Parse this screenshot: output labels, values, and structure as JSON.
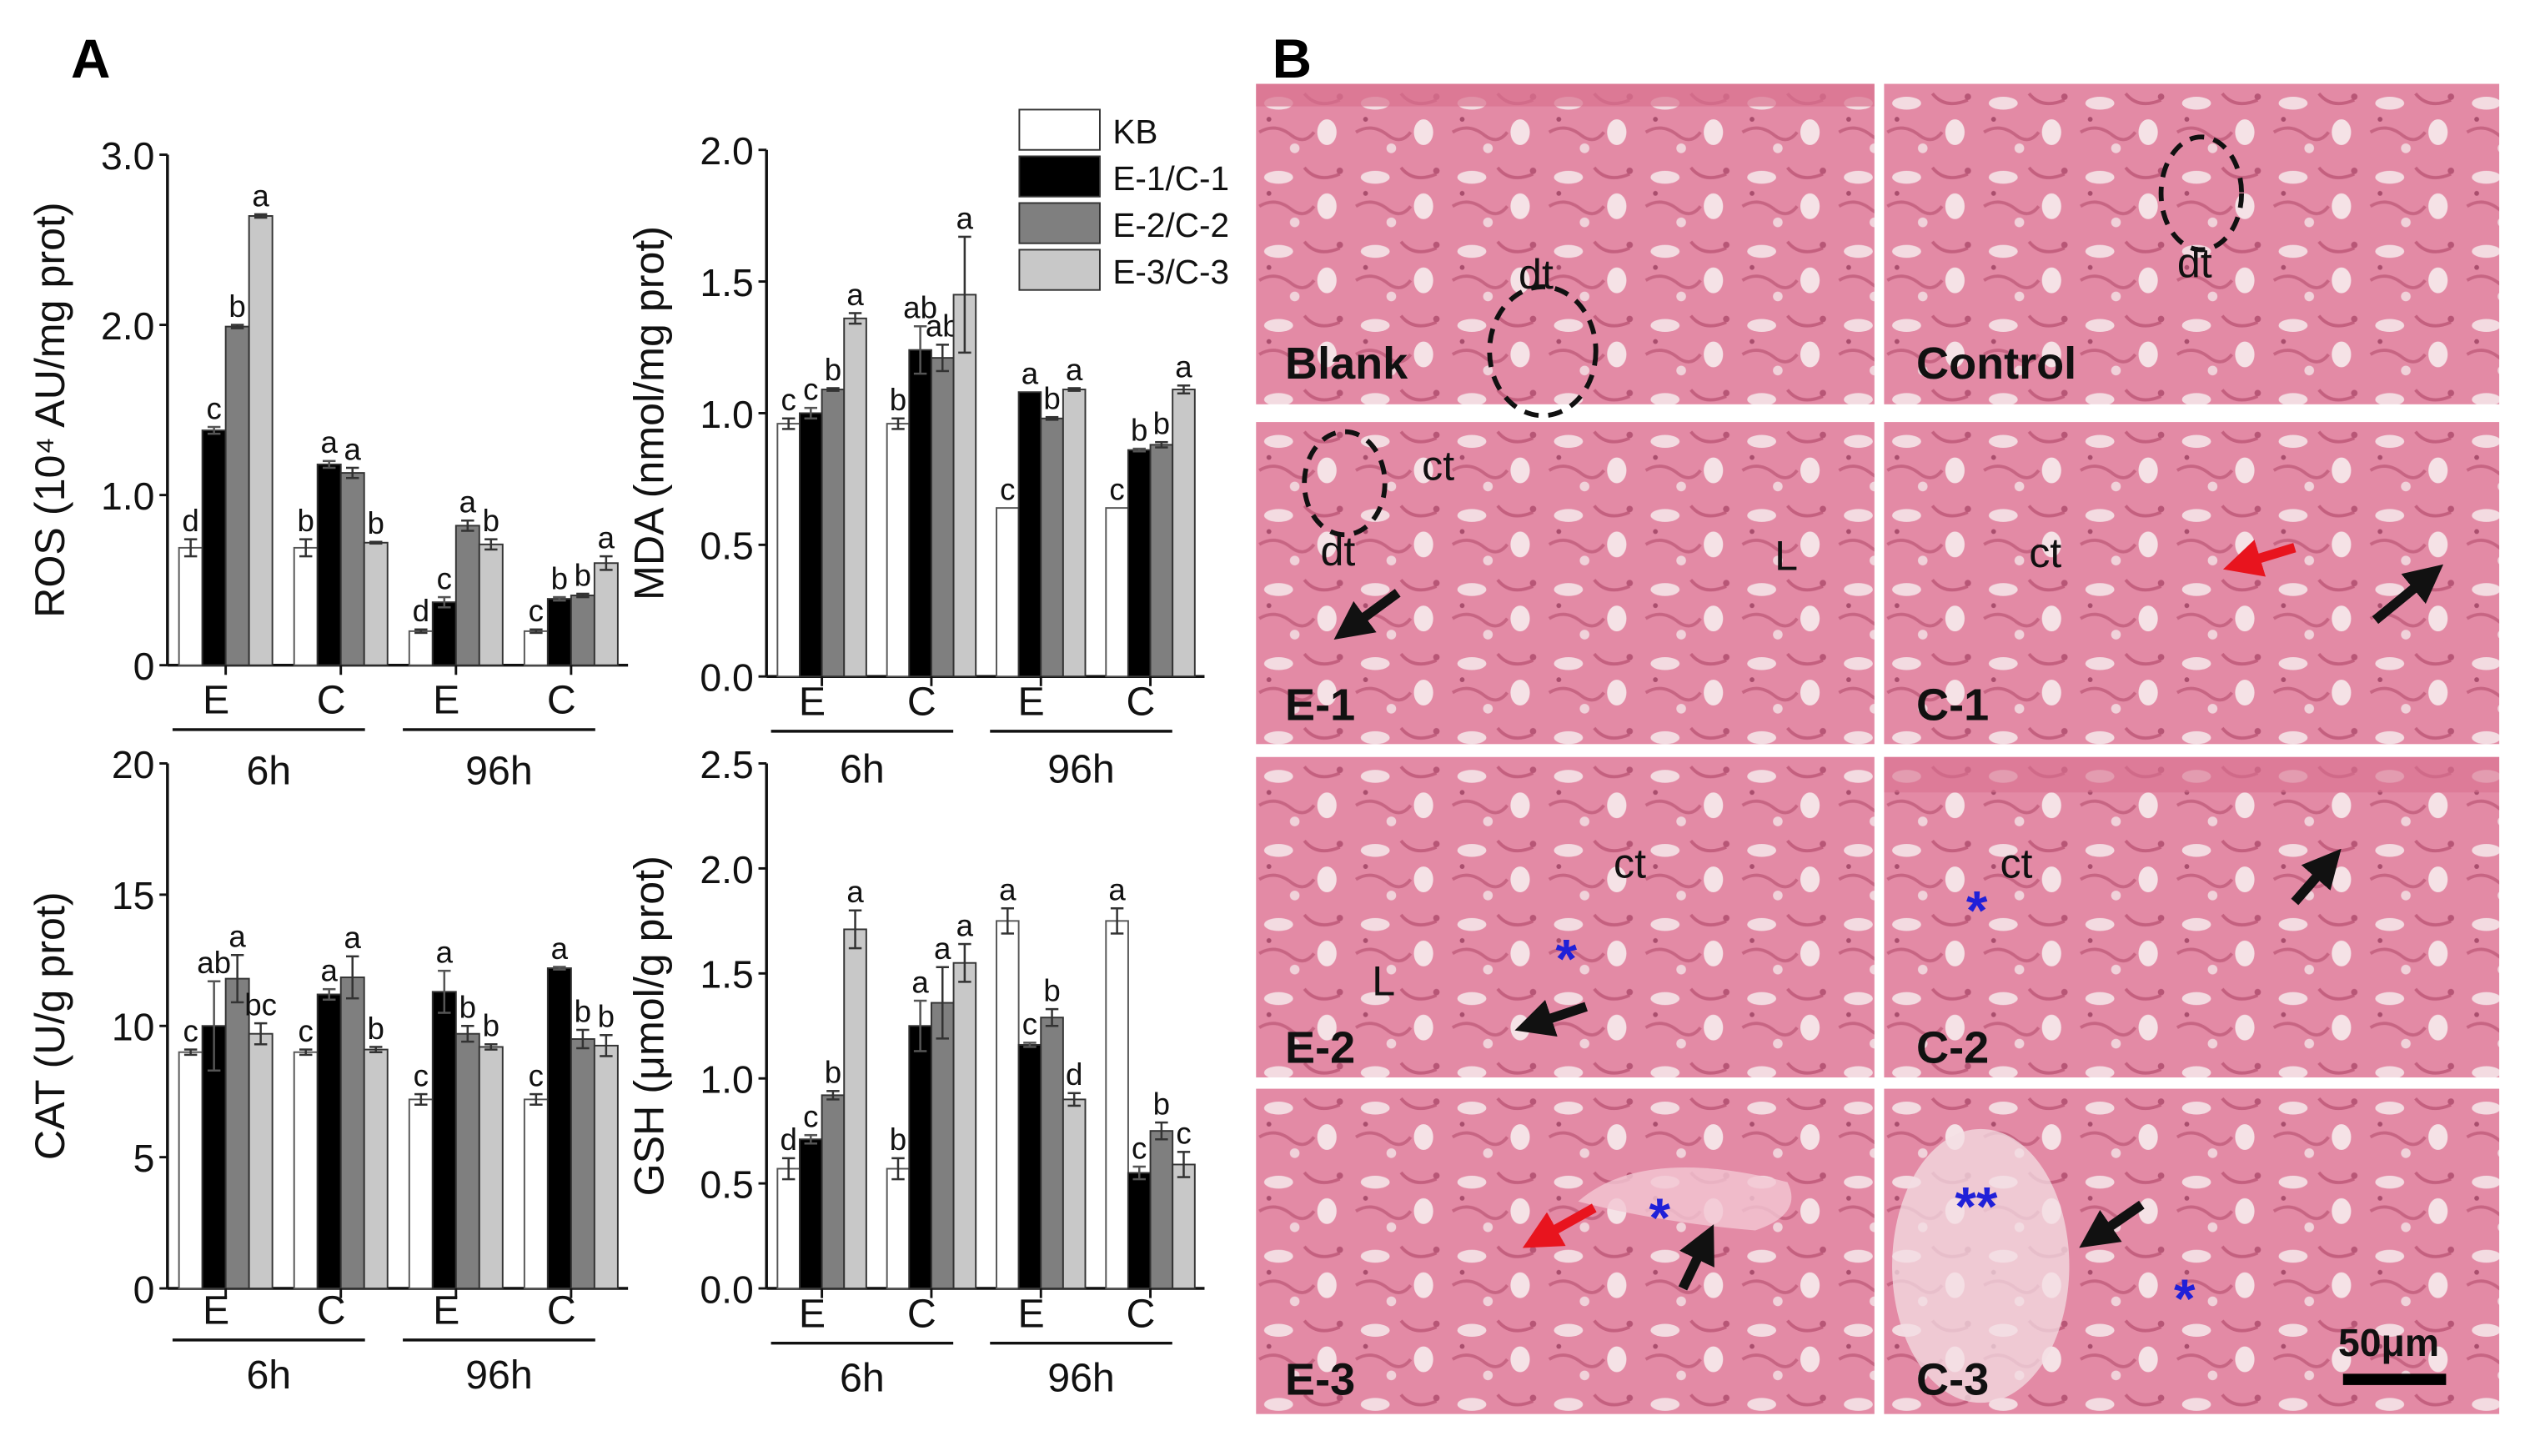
{
  "panel_labels": {
    "a": "A",
    "b": "B"
  },
  "legend": [
    {
      "label": "KB",
      "color": "#ffffff"
    },
    {
      "label": "E-1/C-1",
      "color": "#000000"
    },
    {
      "label": "E-2/C-2",
      "color": "#7f7f7f"
    },
    {
      "label": "E-3/C-3",
      "color": "#c8c8c8"
    }
  ],
  "chart_data": [
    {
      "type": "bar",
      "id": "ros",
      "ylabel": "ROS (10⁴ AU/mg prot)",
      "ylim": [
        0,
        3.0
      ],
      "yticks": [
        0,
        1.0,
        2.0,
        3.0
      ],
      "ytick_labels": [
        "0",
        "1.0",
        "2.0",
        "3.0"
      ],
      "categories": [
        "E",
        "C",
        "E",
        "C"
      ],
      "time_groups": [
        "6h",
        "96h"
      ],
      "series_names": [
        "KB",
        "E-1/C-1",
        "E-2/C-2",
        "E-3/C-3"
      ],
      "values": [
        [
          0.69,
          1.38,
          1.99,
          2.64
        ],
        [
          0.69,
          1.18,
          1.13,
          0.72
        ],
        [
          0.2,
          0.37,
          0.82,
          0.71
        ],
        [
          0.2,
          0.39,
          0.41,
          0.6
        ]
      ],
      "errors": [
        [
          0.05,
          0.02,
          0.01,
          0.01
        ],
        [
          0.05,
          0.02,
          0.03,
          0.005
        ],
        [
          0.01,
          0.03,
          0.03,
          0.03
        ],
        [
          0.01,
          0.01,
          0.01,
          0.04
        ]
      ],
      "letters": [
        [
          "d",
          "c",
          "b",
          "a"
        ],
        [
          "b",
          "a",
          "a",
          "b"
        ],
        [
          "d",
          "c",
          "a",
          "b"
        ],
        [
          "c",
          "b",
          "b",
          "a"
        ]
      ]
    },
    {
      "type": "bar",
      "id": "mda",
      "ylabel": "MDA (nmol/mg prot)",
      "ylim": [
        0,
        2.0
      ],
      "yticks": [
        0,
        0.5,
        1.0,
        1.5,
        2.0
      ],
      "ytick_labels": [
        "0.0",
        "0.5",
        "1.0",
        "1.5",
        "2.0"
      ],
      "categories": [
        "E",
        "C",
        "E",
        "C"
      ],
      "time_groups": [
        "6h",
        "96h"
      ],
      "series_names": [
        "KB",
        "E-1/C-1",
        "E-2/C-2",
        "E-3/C-3"
      ],
      "values": [
        [
          0.96,
          1.0,
          1.09,
          1.36
        ],
        [
          0.96,
          1.24,
          1.21,
          1.45
        ],
        [
          0.64,
          1.08,
          0.98,
          1.09
        ],
        [
          0.64,
          0.86,
          0.88,
          1.09
        ]
      ],
      "errors": [
        [
          0.02,
          0.02,
          0.005,
          0.02
        ],
        [
          0.02,
          0.09,
          0.05,
          0.22
        ],
        [
          0,
          0,
          0.005,
          0.005
        ],
        [
          0,
          0.005,
          0.01,
          0.015
        ]
      ],
      "letters": [
        [
          "c",
          "c",
          "b",
          "a"
        ],
        [
          "b",
          "ab",
          "ab",
          "a"
        ],
        [
          "c",
          "a",
          "b",
          "a"
        ],
        [
          "c",
          "b",
          "b",
          "a"
        ]
      ]
    },
    {
      "type": "bar",
      "id": "cat",
      "ylabel": "CAT (U/g prot)",
      "ylim": [
        0,
        20
      ],
      "yticks": [
        0,
        5,
        10,
        15,
        20
      ],
      "ytick_labels": [
        "0",
        "5",
        "10",
        "15",
        "20"
      ],
      "categories": [
        "E",
        "C",
        "E",
        "C"
      ],
      "time_groups": [
        "6h",
        "96h"
      ],
      "series_names": [
        "KB",
        "E-1/C-1",
        "E-2/C-2",
        "E-3/C-3"
      ],
      "values": [
        [
          9.0,
          10.0,
          11.8,
          9.7
        ],
        [
          9.0,
          11.2,
          11.85,
          9.1
        ],
        [
          7.2,
          11.3,
          9.7,
          9.2
        ],
        [
          7.2,
          12.2,
          9.5,
          9.25
        ]
      ],
      "errors": [
        [
          0.1,
          1.7,
          0.9,
          0.4
        ],
        [
          0.1,
          0.2,
          0.8,
          0.1
        ],
        [
          0.2,
          0.8,
          0.3,
          0.1
        ],
        [
          0.2,
          0.05,
          0.35,
          0.4
        ]
      ],
      "letters": [
        [
          "c",
          "ab",
          "a",
          "bc"
        ],
        [
          "c",
          "a",
          "a",
          "b"
        ],
        [
          "c",
          "a",
          "b",
          "b"
        ],
        [
          "c",
          "a",
          "b",
          "b"
        ]
      ]
    },
    {
      "type": "bar",
      "id": "gsh",
      "ylabel": "GSH (μmol/g prot)",
      "ylim": [
        0,
        2.5
      ],
      "yticks": [
        0,
        0.5,
        1.0,
        1.5,
        2.0,
        2.5
      ],
      "ytick_labels": [
        "0.0",
        "0.5",
        "1.0",
        "1.5",
        "2.0",
        "2.5"
      ],
      "categories": [
        "E",
        "C",
        "E",
        "C"
      ],
      "time_groups": [
        "6h",
        "96h"
      ],
      "series_names": [
        "KB",
        "E-1/C-1",
        "E-2/C-2",
        "E-3/C-3"
      ],
      "values": [
        [
          0.57,
          0.71,
          0.92,
          1.71
        ],
        [
          0.57,
          1.25,
          1.36,
          1.55
        ],
        [
          1.75,
          1.16,
          1.29,
          0.9
        ],
        [
          1.75,
          0.55,
          0.75,
          0.59
        ]
      ],
      "errors": [
        [
          0.05,
          0.02,
          0.02,
          0.09
        ],
        [
          0.05,
          0.12,
          0.17,
          0.09
        ],
        [
          0.06,
          0.01,
          0.04,
          0.03
        ],
        [
          0.06,
          0.03,
          0.04,
          0.06
        ]
      ],
      "letters": [
        [
          "d",
          "c",
          "b",
          "a"
        ],
        [
          "b",
          "a",
          "a",
          "a"
        ],
        [
          "a",
          "c",
          "b",
          "d"
        ],
        [
          "a",
          "c",
          "b",
          "c"
        ]
      ]
    }
  ],
  "micrographs": {
    "tiles": [
      {
        "label": "Blank",
        "annotations": [
          "dt"
        ]
      },
      {
        "label": "Control",
        "annotations": [
          "dt"
        ]
      },
      {
        "label": "E-1",
        "annotations": [
          "ct",
          "dt",
          "L"
        ]
      },
      {
        "label": "C-1",
        "annotations": [
          "ct"
        ]
      },
      {
        "label": "E-2",
        "annotations": [
          "ct",
          "*",
          "L"
        ]
      },
      {
        "label": "C-2",
        "annotations": [
          "ct",
          "*"
        ]
      },
      {
        "label": "E-3",
        "annotations": [
          "*"
        ]
      },
      {
        "label": "C-3",
        "annotations": [
          "**",
          "*"
        ]
      }
    ],
    "scale_bar": "50μm",
    "colors": {
      "tissue": "#e58aa6",
      "arrow_black": "#111111",
      "arrow_red": "#e8141e",
      "asterisk": "#2020d8"
    }
  }
}
